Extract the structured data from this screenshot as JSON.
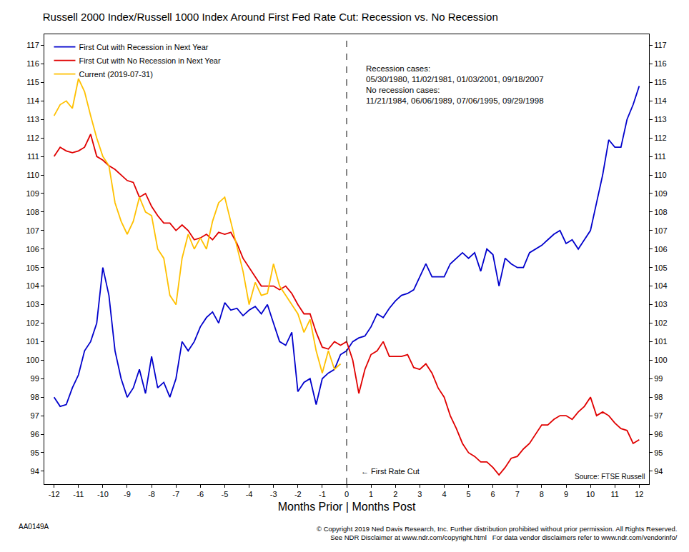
{
  "chart_data": {
    "type": "line",
    "title": "Russell 2000 Index/Russell 1000 Index Around First Fed Rate Cut: Recession vs. No Recession",
    "x_label": "Months Prior | Months Post",
    "x": [
      -12,
      -11.75,
      -11.5,
      -11.25,
      -11,
      -10.75,
      -10.5,
      -10.25,
      -10,
      -9.75,
      -9.5,
      -9.25,
      -9,
      -8.75,
      -8.5,
      -8.25,
      -8,
      -7.75,
      -7.5,
      -7.25,
      -7,
      -6.75,
      -6.5,
      -6.25,
      -6,
      -5.75,
      -5.5,
      -5.25,
      -5,
      -4.75,
      -4.5,
      -4.25,
      -4,
      -3.75,
      -3.5,
      -3.25,
      -3,
      -2.75,
      -2.5,
      -2.25,
      -2,
      -1.75,
      -1.5,
      -1.25,
      -1,
      -0.75,
      -0.5,
      -0.25,
      0,
      0.25,
      0.5,
      0.75,
      1,
      1.25,
      1.5,
      1.75,
      2,
      2.25,
      2.5,
      2.75,
      3,
      3.25,
      3.5,
      3.75,
      4,
      4.25,
      4.5,
      4.75,
      5,
      5.25,
      5.5,
      5.75,
      6,
      6.25,
      6.5,
      6.75,
      7,
      7.25,
      7.5,
      7.75,
      8,
      8.25,
      8.5,
      8.75,
      9,
      9.25,
      9.5,
      9.75,
      10,
      10.25,
      10.5,
      10.75,
      11,
      11.25,
      11.5,
      11.75,
      12
    ],
    "series": [
      {
        "name": "First Cut with Recession in Next Year",
        "color": "#0000cc",
        "values": [
          98.0,
          97.5,
          97.6,
          98.5,
          99.2,
          100.5,
          101.0,
          102.0,
          105.0,
          103.5,
          100.5,
          99.0,
          98.0,
          98.5,
          99.5,
          98.2,
          100.2,
          98.5,
          98.8,
          98.0,
          99.0,
          101.0,
          100.5,
          101.0,
          101.8,
          102.3,
          102.6,
          102.0,
          103.1,
          102.7,
          102.8,
          102.4,
          102.7,
          102.9,
          102.5,
          103.0,
          102.0,
          101.0,
          100.8,
          101.5,
          98.3,
          98.8,
          99.0,
          97.6,
          99.0,
          99.3,
          99.5,
          100.3,
          100.5,
          101.0,
          101.2,
          101.3,
          101.8,
          102.5,
          102.3,
          102.8,
          103.2,
          103.5,
          103.6,
          103.8,
          104.5,
          105.2,
          104.5,
          104.5,
          104.5,
          105.2,
          105.5,
          105.8,
          105.5,
          105.8,
          104.8,
          106.0,
          105.7,
          104.0,
          105.5,
          105.2,
          105.0,
          105.0,
          105.8,
          106.0,
          106.2,
          106.5,
          106.8,
          107.0,
          106.3,
          106.5,
          106.0,
          106.5,
          107.0,
          108.5,
          110.0,
          111.9,
          111.5,
          111.5,
          113.0,
          113.8,
          114.8
        ]
      },
      {
        "name": "First Cut with No Recession in Next Year",
        "color": "#e00000",
        "values": [
          111.0,
          111.5,
          111.3,
          111.2,
          111.3,
          111.5,
          112.2,
          111.0,
          110.8,
          110.5,
          110.3,
          110.0,
          109.7,
          109.6,
          108.8,
          109.0,
          108.3,
          107.8,
          107.4,
          107.4,
          107.0,
          107.3,
          107.0,
          106.5,
          106.6,
          106.8,
          106.5,
          106.9,
          106.8,
          106.9,
          106.3,
          105.5,
          105.0,
          104.5,
          104.0,
          104.0,
          104.0,
          103.8,
          104.0,
          103.6,
          103.0,
          102.5,
          102.5,
          101.5,
          100.7,
          100.6,
          101.0,
          100.8,
          101.0,
          100.0,
          98.2,
          99.5,
          100.3,
          100.5,
          101.0,
          100.2,
          100.2,
          100.2,
          100.3,
          99.6,
          99.5,
          99.8,
          99.3,
          98.5,
          98.0,
          97.0,
          96.3,
          95.5,
          95.0,
          94.8,
          94.5,
          94.5,
          94.2,
          93.8,
          94.2,
          94.7,
          94.8,
          95.2,
          95.5,
          96.0,
          96.5,
          96.5,
          96.8,
          97.0,
          97.0,
          96.8,
          97.2,
          97.5,
          98.0,
          97.0,
          97.2,
          97.0,
          96.6,
          96.3,
          96.2,
          95.5,
          95.7
        ]
      },
      {
        "name": "Current (2019-07-31)",
        "color": "#ffc000",
        "values": [
          113.2,
          113.8,
          114.0,
          113.6,
          115.2,
          114.5,
          113.2,
          112.0,
          111.0,
          110.5,
          108.5,
          107.5,
          106.8,
          107.5,
          108.8,
          108.0,
          107.8,
          106.0,
          105.5,
          103.5,
          103.0,
          105.5,
          106.8,
          106.0,
          106.6,
          106.0,
          107.5,
          108.5,
          108.8,
          107.5,
          106.2,
          104.8,
          103.0,
          104.2,
          103.5,
          103.6,
          105.2,
          104.0,
          103.5,
          103.0,
          102.5,
          101.5,
          102.2,
          100.5,
          99.3,
          100.5,
          99.5,
          99.8,
          null,
          null,
          null,
          null,
          null,
          null,
          null,
          null,
          null,
          null,
          null,
          null,
          null,
          null,
          null,
          null,
          null,
          null,
          null,
          null,
          null,
          null,
          null,
          null,
          null,
          null,
          null,
          null,
          null,
          null,
          null,
          null,
          null,
          null,
          null,
          null,
          null,
          null,
          null,
          null,
          null,
          null,
          null,
          null,
          null,
          null,
          null,
          null,
          null
        ]
      }
    ],
    "xlim": [
      -12.4,
      12.4
    ],
    "xticks": [
      -12,
      -11,
      -10,
      -9,
      -8,
      -7,
      -6,
      -5,
      -4,
      -3,
      -2,
      -1,
      0,
      1,
      2,
      3,
      4,
      5,
      6,
      7,
      8,
      9,
      10,
      11,
      12
    ],
    "ylim": [
      93.3,
      117.6
    ],
    "yticks": [
      94,
      95,
      96,
      97,
      98,
      99,
      100,
      101,
      102,
      103,
      104,
      105,
      106,
      107,
      108,
      109,
      110,
      111,
      112,
      113,
      114,
      115,
      116,
      117
    ],
    "y2lim": [
      93.3,
      117.6
    ],
    "y2ticks": [
      94,
      95,
      96,
      97,
      98,
      99,
      100,
      101,
      102,
      103,
      104,
      105,
      106,
      107,
      108,
      109,
      110,
      111,
      112,
      113,
      114,
      115,
      116,
      117
    ],
    "grid": false,
    "legend": "upper left",
    "annotations": [
      {
        "text": "← First Rate Cut",
        "x": 0,
        "y": 94.0
      }
    ],
    "case_notes": [
      "Recession cases:",
      "05/30/1980, 11/02/1981, 01/03/2001, 09/18/2007",
      "No recession cases:",
      "11/21/1984, 06/06/1989, 07/06/1995, 09/29/1998"
    ],
    "source": "Source: FTSE Russell",
    "chart_id": "AA0149A",
    "footer": [
      "© Copyright 2019 Ned Davis Research, Inc. Further distribution prohibited without prior permission. All Rights Reserved.",
      "See NDR Disclaimer at www.ndr.com/copyright.html   For data vendor disclaimers refer to www.ndr.com/vendorinfo/"
    ]
  }
}
